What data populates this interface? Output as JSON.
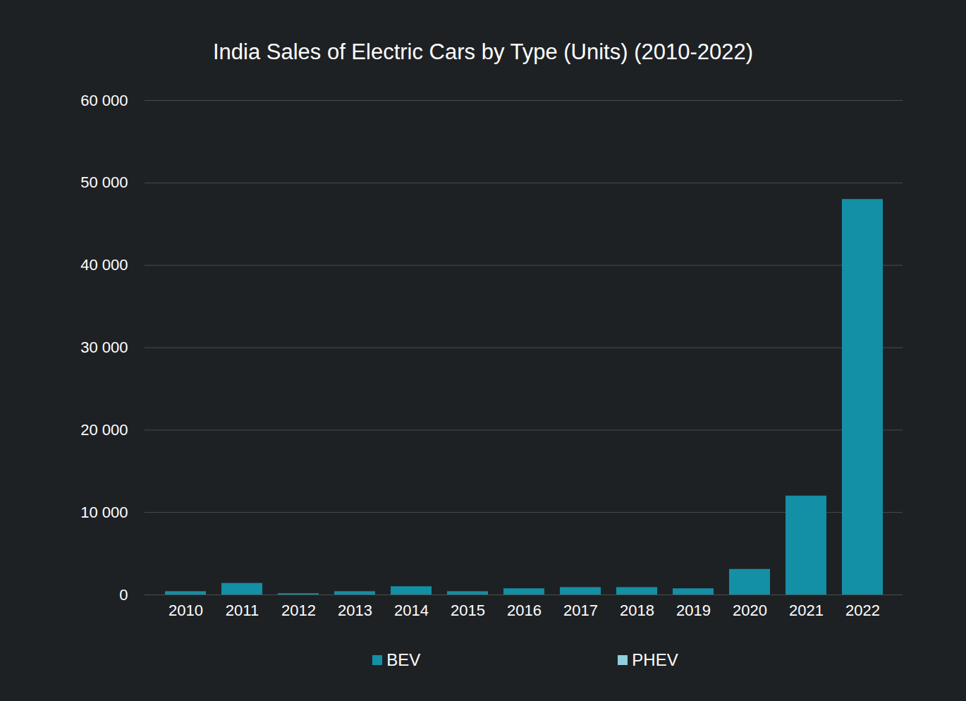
{
  "chart_data": {
    "type": "bar",
    "title": "India Sales of Electric Cars by Type (Units) (2010-2022)",
    "categories": [
      "2010",
      "2011",
      "2012",
      "2013",
      "2014",
      "2015",
      "2016",
      "2017",
      "2018",
      "2019",
      "2020",
      "2021",
      "2022"
    ],
    "series": [
      {
        "name": "BEV",
        "color": "#1390a5",
        "values": [
          400,
          1400,
          150,
          400,
          1000,
          400,
          750,
          900,
          900,
          750,
          3100,
          12000,
          48000
        ]
      },
      {
        "name": "PHEV",
        "color": "#8fd0dd",
        "values": [
          0,
          0,
          0,
          0,
          0,
          0,
          0,
          0,
          0,
          0,
          0,
          0,
          0
        ]
      }
    ],
    "stacked": true,
    "ylim": [
      0,
      60000
    ],
    "yticks": [
      0,
      {
        "value": 10000,
        "label": "10 000"
      },
      {
        "value": 20000,
        "label": "20 000"
      },
      {
        "value": 30000,
        "label": "30 000"
      },
      {
        "value": 40000,
        "label": "40 000"
      },
      {
        "value": 50000,
        "label": "50 000"
      },
      {
        "value": 60000,
        "label": "60 000"
      }
    ],
    "grid": true,
    "legend": "bottom"
  }
}
